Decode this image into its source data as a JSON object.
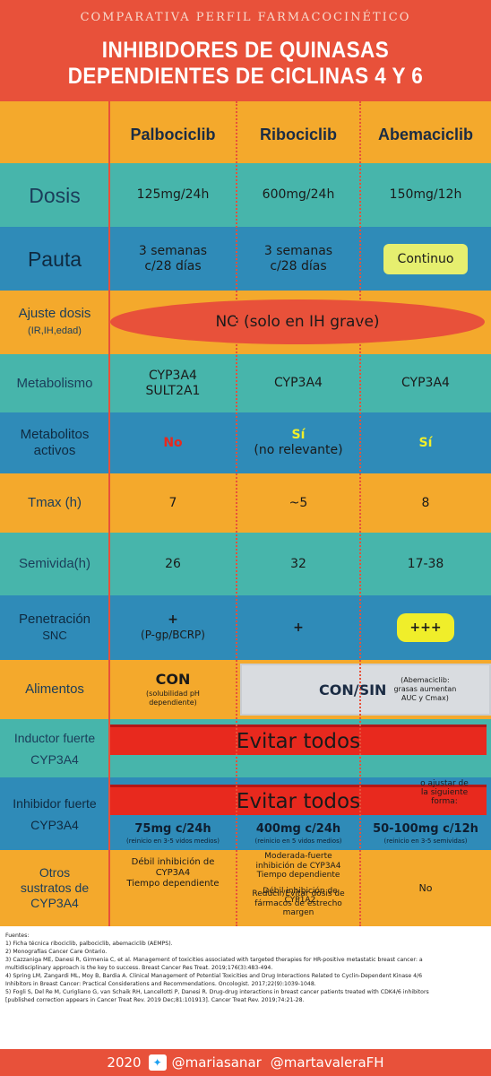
{
  "header": {
    "supertitle": "COMPARATIVA PERFIL FARMACOCINÉTICO",
    "title_line1": "INHIBIDORES DE QUINASAS",
    "title_line2": "DEPENDIENTES DE CICLINAS 4 Y 6"
  },
  "drugs": [
    "Palbociclib",
    "Ribociclib",
    "Abemaciclib"
  ],
  "rows": {
    "dosis": {
      "label": "Dosis",
      "values": [
        "125mg/24h",
        "600mg/24h",
        "150mg/12h"
      ]
    },
    "pauta": {
      "label": "Pauta",
      "palbo_line1": "3 semanas",
      "palbo_line2": "c/28 días",
      "ribo_line1": "3 semanas",
      "ribo_line2": "c/28 días",
      "abema": "Continuo"
    },
    "ajuste": {
      "label_line1": "Ajuste dosis",
      "label_line2": "(IR,IH,edad)",
      "value": "NO (solo en IH grave)"
    },
    "metabolismo": {
      "label": "Metabolismo",
      "palbo_line1": "CYP3A4",
      "palbo_line2": "SULT2A1",
      "ribo": "CYP3A4",
      "abema": "CYP3A4"
    },
    "metabolitos": {
      "label_line1": "Metabolitos",
      "label_line2": "activos",
      "palbo": "No",
      "ribo_line1": "Sí",
      "ribo_line2": "(no relevante)",
      "abema": "Sí"
    },
    "tmax": {
      "label": "Tmax (h)",
      "values": [
        "7",
        "~5",
        "8"
      ]
    },
    "semivida": {
      "label": "Semivida(h)",
      "values": [
        "26",
        "32",
        "17-38"
      ]
    },
    "penetracion": {
      "label_line1": "Penetración",
      "label_line2": "SNC",
      "palbo_line1": "+",
      "palbo_line2": "(P-gp/BCRP)",
      "ribo": "+",
      "abema": "+++"
    },
    "alimentos": {
      "label": "Alimentos",
      "palbo_main": "CON",
      "palbo_note_line1": "(solubilidad pH",
      "palbo_note_line2": "dependiente)",
      "others_main": "CON/SIN",
      "others_note_line1": "(Abemaciclib:",
      "others_note_line2": "grasas aumentan",
      "others_note_line3": "AUC y Cmax)"
    },
    "inductor": {
      "label_line1": "Inductor fuerte",
      "label_line2": "CYP3A4",
      "value": "Evitar todos"
    },
    "inhibidor": {
      "label_line1": "Inhibidor fuerte",
      "label_line2": "CYP3A4",
      "value": "Evitar todos",
      "note_line1": "o ajustar de",
      "note_line2": "la siguiente",
      "note_line3": "forma:",
      "palbo": "75mg c/24h",
      "palbo_note": "(reinicio en 3-5 vidos medios)",
      "ribo": "400mg c/24h",
      "ribo_note": "(reinicio en 5 vidos medios)",
      "abema": "50-100mg c/12h",
      "abema_note": "(reinicio en 3-5 semividas)"
    },
    "otros": {
      "label_line1": "Otros",
      "label_line2": "sustratos de",
      "label_line3": "CYP3A4",
      "palbo_line1": "Débil inhibición de",
      "palbo_line2": "CYP3A4",
      "palbo_line3": "Tiempo dependiente",
      "ribo_line1": "Moderada-fuerte",
      "ribo_line2": "inhibición de CYP3A4",
      "ribo_line3": "Tiempo dependiente",
      "ribo_line4": "Reducir/Evitar dosis de",
      "ribo_line5": "fármacos de estrecho",
      "ribo_line6": "margen",
      "ribo_line7": "Débil inhibición de",
      "ribo_line8": "CYP1A2",
      "abema": "No"
    }
  },
  "references": {
    "title": "Fuentes:",
    "items": [
      "1) Ficha técnica ribociclib, palbociclib, abemaciclib (AEMPS).",
      "2) Monografías Cancer Care Ontario.",
      "3) Cazzaniga ME, Danesi R, Girmenia C, et al. Management of toxicities associated with targeted therapies for HR-positive metastatic breast cancer: a",
      "multidisciplinary approach is the key to success. Breast Cancer Res Treat. 2019;176(3):483-494.",
      "4) Spring LM, Zangardi ML, Moy B, Bardia A. Clinical Management of Potential Toxicities and Drug Interactions Related to Cyclin-Dependent Kinase 4/6",
      "Inhibitors in Breast Cancer: Practical Considerations and Recommendations. Oncologist. 2017;22(9):1039-1048.",
      "5) Fogli S, Del Re M, Curigliano G, van Schaik RH, Lancellotti P, Danesi R. Drug-drug interactions in breast cancer patients treated with CDK4/6 inhibitors",
      "[published correction appears in Cancer Treat Rev. 2019 Dec;81:101913]. Cancer Treat Rev. 2019;74:21-28."
    ]
  },
  "footer": {
    "year": "2020",
    "handle1": "@mariasanar",
    "handle2": "@martavaleraFH"
  },
  "colors": {
    "orange": "#f4a92c",
    "teal": "#47b5ab",
    "blue": "#2f8bb8",
    "red": "#e8513a"
  }
}
